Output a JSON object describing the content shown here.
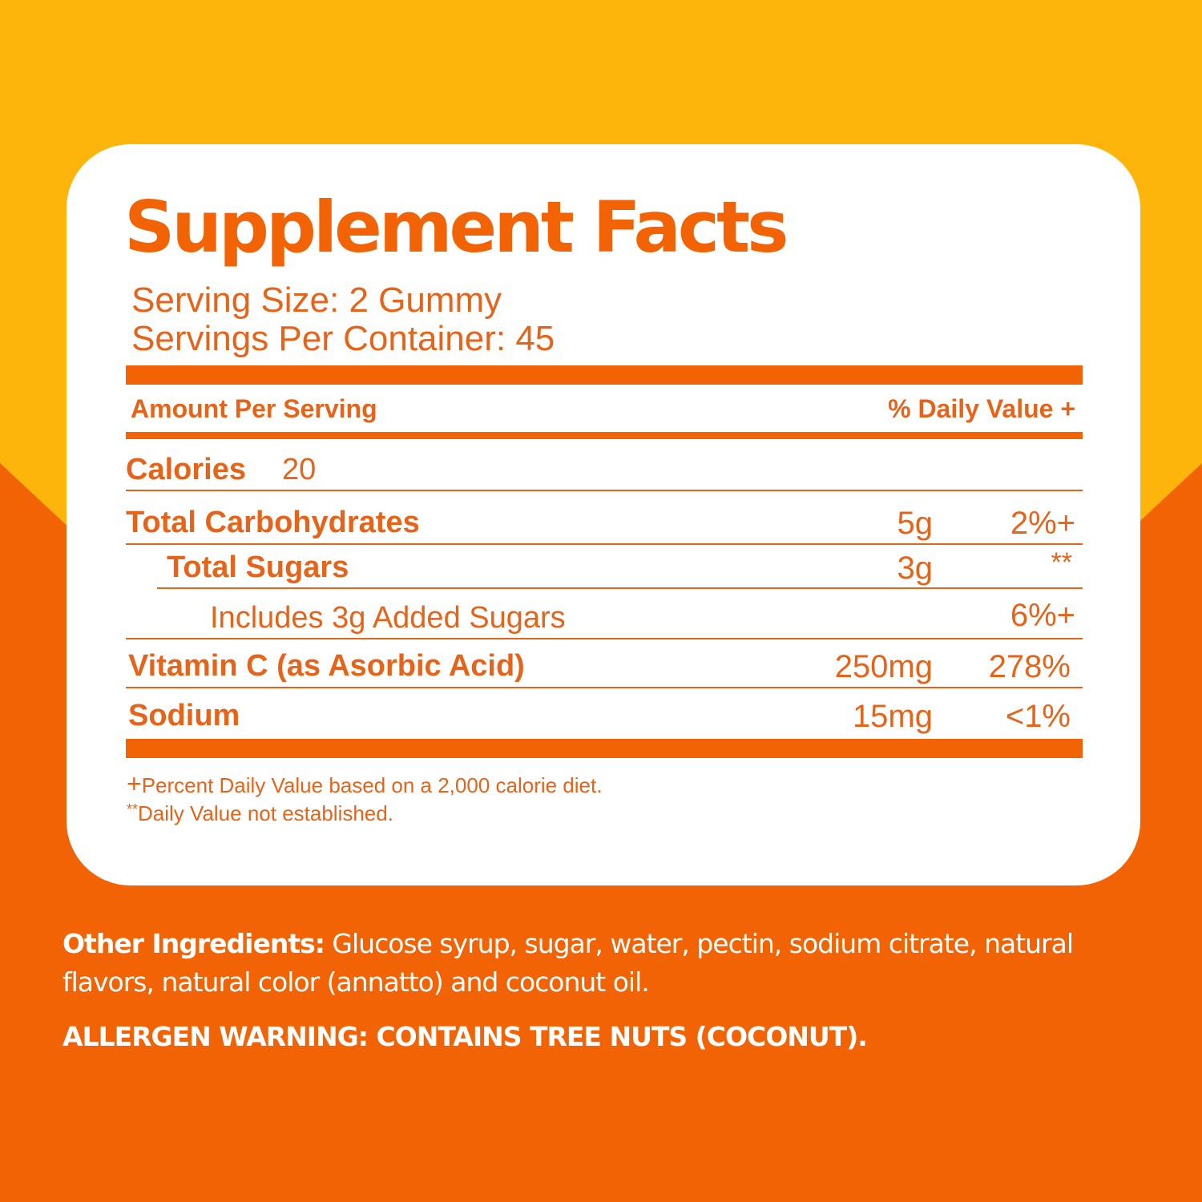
{
  "colors": {
    "yellow": "#FDB40B",
    "orange": "#F26306",
    "text_orange": "#E6641A",
    "card": "#FFFFFF"
  },
  "label": {
    "title": "Supplement Facts",
    "serving_size": "Serving Size: 2 Gummy",
    "servings_per_container": "Servings Per Container: 45",
    "header_amount": "Amount Per Serving",
    "header_dv": "% Daily Value +",
    "calories_label": "Calories",
    "calories_value": "20",
    "rows": [
      {
        "name": "Total Carbohydrates",
        "amount": "5g",
        "dv": "2%+"
      },
      {
        "name": "Total Sugars",
        "amount": "3g",
        "dv": "**"
      },
      {
        "name": "Includes 3g Added Sugars",
        "amount": "",
        "dv": "6%+"
      },
      {
        "name": "Vitamin C (as Asorbic Acid)",
        "amount": "250mg",
        "dv": "278%"
      },
      {
        "name": "Sodium",
        "amount": "15mg",
        "dv": "<1%"
      }
    ],
    "footnote1_mark": "+",
    "footnote1": "Percent Daily Value based on a 2,000 calorie diet.",
    "footnote2_mark": "**",
    "footnote2": "Daily Value not established."
  },
  "ingredients": {
    "label": "Other Ingredients:",
    "text": " Glucose syrup, sugar, water, pectin, sodium citrate, natural",
    "text2": "flavors, natural color (annatto) and coconut oil.",
    "allergen": "ALLERGEN WARNING: CONTAINS TREE NUTS (COCONUT)."
  }
}
